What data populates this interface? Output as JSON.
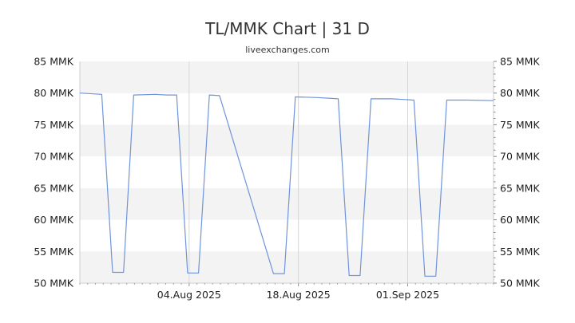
{
  "header": {
    "title": "TL/MMK Chart | 31 D",
    "subtitle": "liveexchanges.com"
  },
  "chart_data": {
    "type": "line",
    "title": "TL/MMK Chart | 31 D",
    "subtitle": "liveexchanges.com",
    "xlabel": "",
    "ylabel": "",
    "x_tick_labels": [
      {
        "label": "04.Aug 2025",
        "day": 4
      },
      {
        "label": "18.Aug 2025",
        "day": 18
      },
      {
        "label": "01.Sep 2025",
        "day": 32
      }
    ],
    "y_tick_labels": [
      "50 MMK",
      "55 MMK",
      "60 MMK",
      "65 MMK",
      "70 MMK",
      "75 MMK",
      "80 MMK",
      "85 MMK"
    ],
    "y_ticks": [
      50,
      55,
      60,
      65,
      70,
      75,
      80,
      85
    ],
    "ylim": [
      50,
      85
    ],
    "xlim": [
      -10,
      43
    ],
    "grid": true,
    "line_color": "#6f94dc",
    "band_color": "#f3f3f3",
    "series": [
      {
        "points": [
          [
            -10,
            80.0
          ],
          [
            -7.2,
            79.8
          ],
          [
            -5.8,
            51.7
          ],
          [
            -4.4,
            51.7
          ],
          [
            -3.1,
            79.7
          ],
          [
            -0.3,
            79.8
          ],
          [
            1.1,
            79.7
          ],
          [
            2.4,
            79.7
          ],
          [
            3.8,
            51.6
          ],
          [
            5.2,
            51.6
          ],
          [
            6.6,
            79.7
          ],
          [
            7.9,
            79.6
          ],
          [
            14.8,
            51.5
          ],
          [
            16.2,
            51.5
          ],
          [
            17.6,
            79.4
          ],
          [
            20.4,
            79.3
          ],
          [
            23.1,
            79.1
          ],
          [
            24.5,
            51.2
          ],
          [
            25.9,
            51.2
          ],
          [
            27.3,
            79.1
          ],
          [
            30.0,
            79.1
          ],
          [
            32.8,
            78.9
          ],
          [
            34.2,
            51.1
          ],
          [
            35.6,
            51.1
          ],
          [
            37.0,
            78.9
          ],
          [
            39.7,
            78.9
          ],
          [
            43.0,
            78.8
          ]
        ]
      }
    ]
  }
}
